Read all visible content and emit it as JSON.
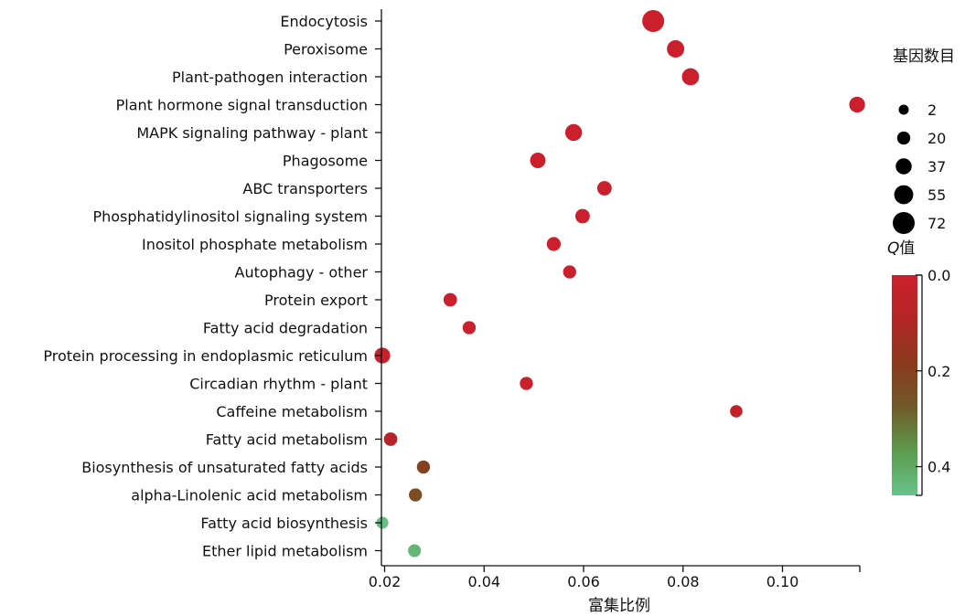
{
  "chart_data": {
    "type": "scatter",
    "title": "",
    "xlabel": "富集比例",
    "ylabel": "",
    "xlim": [
      0.019,
      0.1165
    ],
    "xticks": [
      0.02,
      0.04,
      0.06,
      0.08,
      0.1
    ],
    "xtick_labels": [
      "0.02",
      "0.04",
      "0.06",
      "0.08",
      "0.10"
    ],
    "grid": false,
    "legend_position": "right",
    "categories": [
      "Endocytosis",
      "Peroxisome",
      "Plant-pathogen interaction",
      "Plant hormone signal transduction",
      "MAPK signaling pathway - plant",
      "Phagosome",
      "ABC transporters",
      "Phosphatidylinositol signaling system",
      "Inositol phosphate metabolism",
      "Autophagy - other",
      "Protein export",
      "Fatty acid degradation",
      "Protein processing in endoplasmic reticulum",
      "Circadian rhythm - plant",
      "Caffeine metabolism",
      "Fatty acid metabolism",
      "Biosynthesis of unsaturated fatty acids",
      "alpha-Linolenic acid metabolism",
      "Fatty acid biosynthesis",
      "Ether lipid metabolism"
    ],
    "points": [
      {
        "pathway": "Endocytosis",
        "x": 0.074,
        "count": 72,
        "q": 0.0
      },
      {
        "pathway": "Peroxisome",
        "x": 0.0785,
        "count": 45,
        "q": 0.0
      },
      {
        "pathway": "Plant-pathogen interaction",
        "x": 0.0815,
        "count": 44,
        "q": 0.0
      },
      {
        "pathway": "Plant hormone signal transduction",
        "x": 0.115,
        "count": 36,
        "q": 0.0
      },
      {
        "pathway": "MAPK signaling pathway - plant",
        "x": 0.058,
        "count": 42,
        "q": 0.0
      },
      {
        "pathway": "Phagosome",
        "x": 0.0508,
        "count": 34,
        "q": 0.0
      },
      {
        "pathway": "ABC transporters",
        "x": 0.0642,
        "count": 28,
        "q": 0.0
      },
      {
        "pathway": "Phosphatidylinositol signaling system",
        "x": 0.0598,
        "count": 28,
        "q": 0.0
      },
      {
        "pathway": "Inositol phosphate metabolism",
        "x": 0.054,
        "count": 25,
        "q": 0.0
      },
      {
        "pathway": "Autophagy - other",
        "x": 0.0572,
        "count": 20,
        "q": 0.0
      },
      {
        "pathway": "Protein export",
        "x": 0.0332,
        "count": 22,
        "q": 0.0
      },
      {
        "pathway": "Fatty acid degradation",
        "x": 0.037,
        "count": 20,
        "q": 0.0
      },
      {
        "pathway": "Protein processing in endoplasmic reticulum",
        "x": 0.0195,
        "count": 36,
        "q": 0.02
      },
      {
        "pathway": "Circadian rhythm - plant",
        "x": 0.0485,
        "count": 20,
        "q": 0.01
      },
      {
        "pathway": "Caffeine metabolism",
        "x": 0.0907,
        "count": 16,
        "q": 0.04
      },
      {
        "pathway": "Fatty acid metabolism",
        "x": 0.0212,
        "count": 22,
        "q": 0.08
      },
      {
        "pathway": "Biosynthesis of unsaturated fatty acids",
        "x": 0.0278,
        "count": 20,
        "q": 0.2
      },
      {
        "pathway": "alpha-Linolenic acid metabolism",
        "x": 0.0262,
        "count": 20,
        "q": 0.24
      },
      {
        "pathway": "Fatty acid biosynthesis",
        "x": 0.0194,
        "count": 14,
        "q": 0.45
      },
      {
        "pathway": "Ether lipid metabolism",
        "x": 0.026,
        "count": 18,
        "q": 0.43
      }
    ],
    "size_legend": {
      "title": "基因数目",
      "values": [
        2,
        20,
        37,
        55,
        72
      ],
      "labels": [
        "2",
        "20",
        "37",
        "55",
        "72"
      ]
    },
    "color_legend": {
      "title_italic": "Q",
      "title_rest": "值",
      "range": [
        0.0,
        0.46
      ],
      "ticks": [
        0.0,
        0.2,
        0.4
      ],
      "tick_labels": [
        "0.0",
        "0.2",
        "0.4"
      ],
      "colors": [
        "#cc1f2d",
        "#b32626",
        "#8a3a1e",
        "#6f5a2a",
        "#5c9b4e",
        "#68c38a"
      ]
    }
  }
}
